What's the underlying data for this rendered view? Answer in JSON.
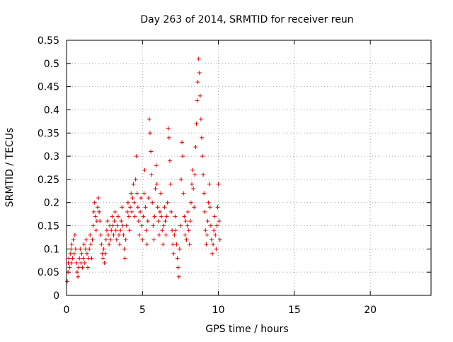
{
  "chart_data": {
    "type": "scatter",
    "title": "Day 263 of 2014, SRMTID for receiver reun",
    "xlabel": "GPS time / hours",
    "ylabel": "SRMTID / TECUs",
    "xlim": [
      0,
      24
    ],
    "ylim": [
      0,
      0.55
    ],
    "xticks": [
      0,
      5,
      10,
      15,
      20
    ],
    "xtick_labels": [
      "0",
      "5",
      "10",
      "15",
      "20"
    ],
    "yticks": [
      0,
      0.05,
      0.1,
      0.15,
      0.2,
      0.25,
      0.3,
      0.35,
      0.4,
      0.45,
      0.5,
      0.55
    ],
    "ytick_labels": [
      "0",
      "0.05",
      "0.1",
      "0.15",
      "0.2",
      "0.25",
      "0.3",
      "0.35",
      "0.4",
      "0.45",
      "0.5",
      "0.55"
    ],
    "grid": true,
    "marker": "+",
    "marker_color": "#e00000",
    "series": [
      {
        "name": "SRMTID",
        "points": [
          [
            0.05,
            0.03
          ],
          [
            0.1,
            0.05
          ],
          [
            0.12,
            0.07
          ],
          [
            0.15,
            0.08
          ],
          [
            0.2,
            0.06
          ],
          [
            0.25,
            0.09
          ],
          [
            0.3,
            0.1
          ],
          [
            0.32,
            0.07
          ],
          [
            0.35,
            0.11
          ],
          [
            0.4,
            0.08
          ],
          [
            0.45,
            0.12
          ],
          [
            0.5,
            0.09
          ],
          [
            0.55,
            0.13
          ],
          [
            0.6,
            0.1
          ],
          [
            0.65,
            0.07
          ],
          [
            0.7,
            0.05
          ],
          [
            0.75,
            0.04
          ],
          [
            0.8,
            0.06
          ],
          [
            0.85,
            0.08
          ],
          [
            0.9,
            0.1
          ],
          [
            0.95,
            0.07
          ],
          [
            1.0,
            0.09
          ],
          [
            1.05,
            0.06
          ],
          [
            1.1,
            0.08
          ],
          [
            1.15,
            0.11
          ],
          [
            1.2,
            0.07
          ],
          [
            1.25,
            0.1
          ],
          [
            1.3,
            0.12
          ],
          [
            1.35,
            0.09
          ],
          [
            1.4,
            0.06
          ],
          [
            1.45,
            0.08
          ],
          [
            1.5,
            0.1
          ],
          [
            1.55,
            0.13
          ],
          [
            1.6,
            0.11
          ],
          [
            1.65,
            0.08
          ],
          [
            1.7,
            0.12
          ],
          [
            1.75,
            0.15
          ],
          [
            1.8,
            0.18
          ],
          [
            1.85,
            0.2
          ],
          [
            1.9,
            0.17
          ],
          [
            1.95,
            0.14
          ],
          [
            2.0,
            0.16
          ],
          [
            2.05,
            0.19
          ],
          [
            2.1,
            0.21
          ],
          [
            2.15,
            0.18
          ],
          [
            2.2,
            0.16
          ],
          [
            2.25,
            0.13
          ],
          [
            2.3,
            0.11
          ],
          [
            2.35,
            0.09
          ],
          [
            2.4,
            0.08
          ],
          [
            2.45,
            0.1
          ],
          [
            2.5,
            0.07
          ],
          [
            2.55,
            0.09
          ],
          [
            2.6,
            0.12
          ],
          [
            2.65,
            0.14
          ],
          [
            2.7,
            0.16
          ],
          [
            2.75,
            0.13
          ],
          [
            2.8,
            0.11
          ],
          [
            2.85,
            0.15
          ],
          [
            2.9,
            0.12
          ],
          [
            2.95,
            0.14
          ],
          [
            3.0,
            0.17
          ],
          [
            3.05,
            0.15
          ],
          [
            3.1,
            0.13
          ],
          [
            3.15,
            0.16
          ],
          [
            3.2,
            0.18
          ],
          [
            3.25,
            0.14
          ],
          [
            3.3,
            0.12
          ],
          [
            3.35,
            0.15
          ],
          [
            3.4,
            0.17
          ],
          [
            3.45,
            0.13
          ],
          [
            3.5,
            0.11
          ],
          [
            3.55,
            0.14
          ],
          [
            3.6,
            0.16
          ],
          [
            3.65,
            0.19
          ],
          [
            3.7,
            0.15
          ],
          [
            3.75,
            0.13
          ],
          [
            3.8,
            0.1
          ],
          [
            3.85,
            0.08
          ],
          [
            3.9,
            0.12
          ],
          [
            3.95,
            0.15
          ],
          [
            4.0,
            0.18
          ],
          [
            4.05,
            0.2
          ],
          [
            4.1,
            0.17
          ],
          [
            4.15,
            0.14
          ],
          [
            4.2,
            0.19
          ],
          [
            4.25,
            0.22
          ],
          [
            4.3,
            0.18
          ],
          [
            4.35,
            0.21
          ],
          [
            4.4,
            0.24
          ],
          [
            4.45,
            0.2
          ],
          [
            4.5,
            0.17
          ],
          [
            4.55,
            0.25
          ],
          [
            4.6,
            0.3
          ],
          [
            4.65,
            0.22
          ],
          [
            4.7,
            0.19
          ],
          [
            4.75,
            0.16
          ],
          [
            4.8,
            0.13
          ],
          [
            4.85,
            0.18
          ],
          [
            4.9,
            0.21
          ],
          [
            4.95,
            0.15
          ],
          [
            5.0,
            0.12
          ],
          [
            5.05,
            0.17
          ],
          [
            5.1,
            0.22
          ],
          [
            5.15,
            0.27
          ],
          [
            5.2,
            0.19
          ],
          [
            5.25,
            0.14
          ],
          [
            5.3,
            0.11
          ],
          [
            5.35,
            0.16
          ],
          [
            5.4,
            0.21
          ],
          [
            5.45,
            0.38
          ],
          [
            5.5,
            0.35
          ],
          [
            5.55,
            0.31
          ],
          [
            5.6,
            0.26
          ],
          [
            5.65,
            0.2
          ],
          [
            5.7,
            0.15
          ],
          [
            5.75,
            0.12
          ],
          [
            5.8,
            0.17
          ],
          [
            5.85,
            0.23
          ],
          [
            5.9,
            0.28
          ],
          [
            5.95,
            0.24
          ],
          [
            6.0,
            0.19
          ],
          [
            6.05,
            0.16
          ],
          [
            6.1,
            0.13
          ],
          [
            6.15,
            0.18
          ],
          [
            6.2,
            0.22
          ],
          [
            6.25,
            0.17
          ],
          [
            6.3,
            0.14
          ],
          [
            6.35,
            0.11
          ],
          [
            6.4,
            0.15
          ],
          [
            6.45,
            0.19
          ],
          [
            6.5,
            0.16
          ],
          [
            6.55,
            0.13
          ],
          [
            6.6,
            0.17
          ],
          [
            6.65,
            0.2
          ],
          [
            6.7,
            0.36
          ],
          [
            6.75,
            0.34
          ],
          [
            6.8,
            0.29
          ],
          [
            6.85,
            0.24
          ],
          [
            6.9,
            0.18
          ],
          [
            6.95,
            0.14
          ],
          [
            7.0,
            0.11
          ],
          [
            7.05,
            0.09
          ],
          [
            7.1,
            0.13
          ],
          [
            7.15,
            0.17
          ],
          [
            7.2,
            0.14
          ],
          [
            7.25,
            0.11
          ],
          [
            7.3,
            0.08
          ],
          [
            7.35,
            0.06
          ],
          [
            7.4,
            0.04
          ],
          [
            7.45,
            0.1
          ],
          [
            7.5,
            0.15
          ],
          [
            7.55,
            0.25
          ],
          [
            7.6,
            0.33
          ],
          [
            7.65,
            0.3
          ],
          [
            7.7,
            0.22
          ],
          [
            7.75,
            0.17
          ],
          [
            7.8,
            0.13
          ],
          [
            7.85,
            0.16
          ],
          [
            7.9,
            0.12
          ],
          [
            7.95,
            0.15
          ],
          [
            8.0,
            0.18
          ],
          [
            8.05,
            0.14
          ],
          [
            8.1,
            0.11
          ],
          [
            8.15,
            0.16
          ],
          [
            8.2,
            0.2
          ],
          [
            8.25,
            0.24
          ],
          [
            8.3,
            0.27
          ],
          [
            8.35,
            0.23
          ],
          [
            8.4,
            0.19
          ],
          [
            8.45,
            0.26
          ],
          [
            8.5,
            0.32
          ],
          [
            8.55,
            0.37
          ],
          [
            8.6,
            0.42
          ],
          [
            8.65,
            0.46
          ],
          [
            8.7,
            0.51
          ],
          [
            8.75,
            0.48
          ],
          [
            8.8,
            0.43
          ],
          [
            8.85,
            0.38
          ],
          [
            8.9,
            0.34
          ],
          [
            8.95,
            0.3
          ],
          [
            9.0,
            0.26
          ],
          [
            9.05,
            0.22
          ],
          [
            9.1,
            0.18
          ],
          [
            9.15,
            0.14
          ],
          [
            9.2,
            0.11
          ],
          [
            9.25,
            0.13
          ],
          [
            9.3,
            0.16
          ],
          [
            9.35,
            0.2
          ],
          [
            9.4,
            0.24
          ],
          [
            9.45,
            0.19
          ],
          [
            9.5,
            0.15
          ],
          [
            9.55,
            0.12
          ],
          [
            9.6,
            0.09
          ],
          [
            9.65,
            0.11
          ],
          [
            9.7,
            0.14
          ],
          [
            9.75,
            0.17
          ],
          [
            9.8,
            0.13
          ],
          [
            9.85,
            0.1
          ],
          [
            9.9,
            0.15
          ],
          [
            9.95,
            0.19
          ],
          [
            10.0,
            0.24
          ],
          [
            10.05,
            0.16
          ],
          [
            10.1,
            0.12
          ]
        ]
      }
    ]
  }
}
